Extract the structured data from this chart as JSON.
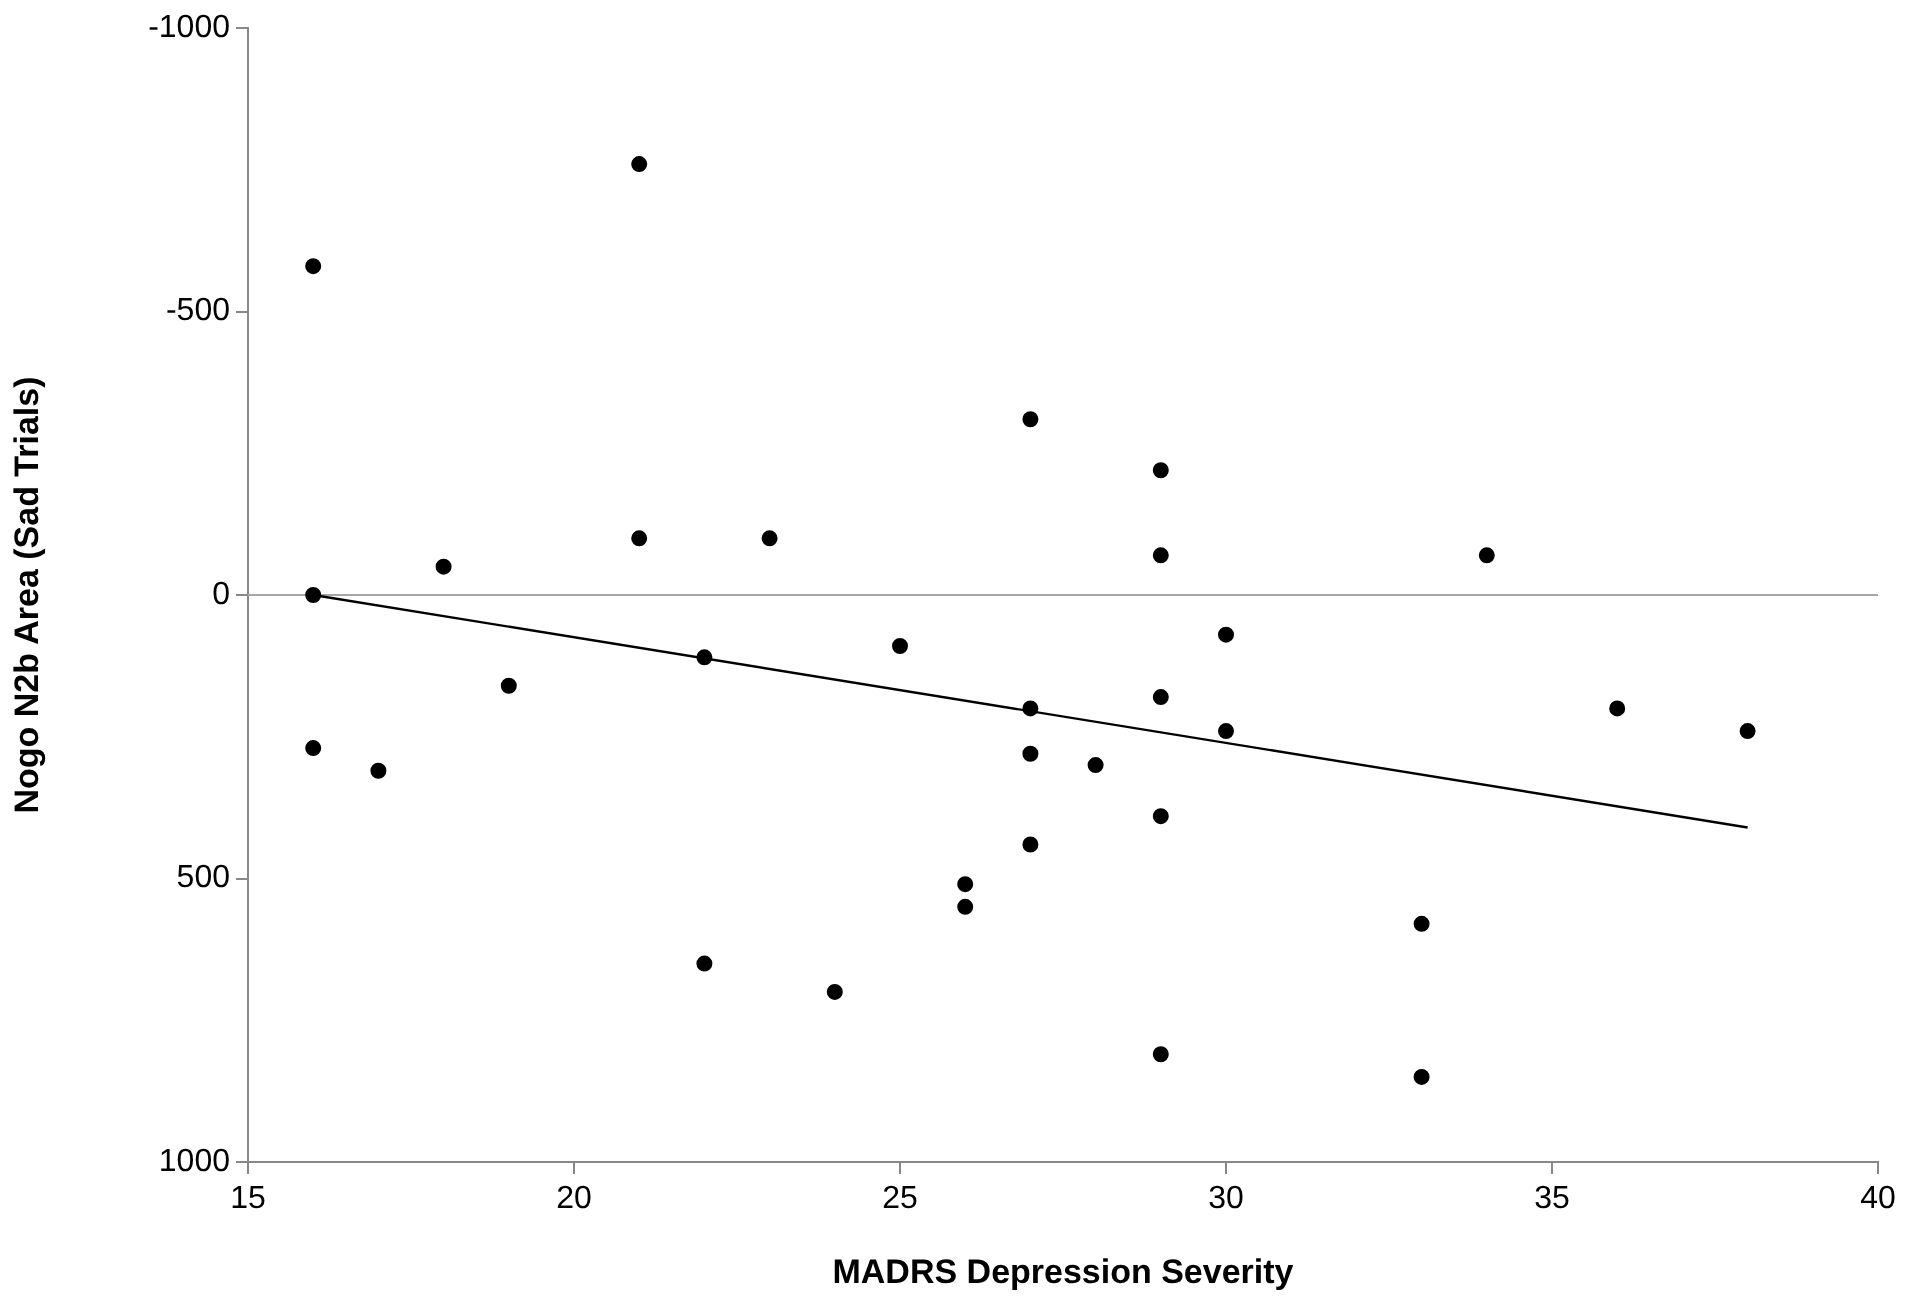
{
  "chart_data": {
    "type": "scatter",
    "xlabel": "MADRS Depression Severity",
    "ylabel": "Nogo N2b Area (Sad Trials)",
    "xlim": [
      15,
      40
    ],
    "xticks": [
      15,
      20,
      25,
      30,
      35,
      40
    ],
    "ylim": [
      1000,
      -1000
    ],
    "yticks": [
      -1000,
      -500,
      0,
      500,
      1000
    ],
    "grid": false,
    "legend": false,
    "marker": "circle",
    "ref_lines": [
      {
        "axis": "y",
        "value": 0,
        "color": "#a6a6a6"
      }
    ],
    "series": [
      {
        "type": "scatter",
        "color": "#000000",
        "x": [
          16,
          21,
          16,
          16,
          17,
          18,
          19,
          21,
          22,
          23,
          22,
          24,
          25,
          27,
          27,
          27,
          27,
          26,
          26,
          28,
          29,
          29,
          29,
          29,
          29,
          30,
          30,
          33,
          33,
          34,
          36,
          38
        ],
        "values": [
          -580,
          -760,
          0,
          270,
          310,
          -50,
          160,
          -100,
          110,
          -100,
          650,
          700,
          90,
          -310,
          200,
          280,
          440,
          510,
          550,
          300,
          -220,
          -70,
          180,
          390,
          810,
          70,
          240,
          580,
          850,
          -70,
          200,
          240
        ]
      },
      {
        "type": "line",
        "color": "#000000",
        "marker": "none",
        "x": [
          16,
          38
        ],
        "values": [
          0,
          410
        ]
      }
    ]
  }
}
